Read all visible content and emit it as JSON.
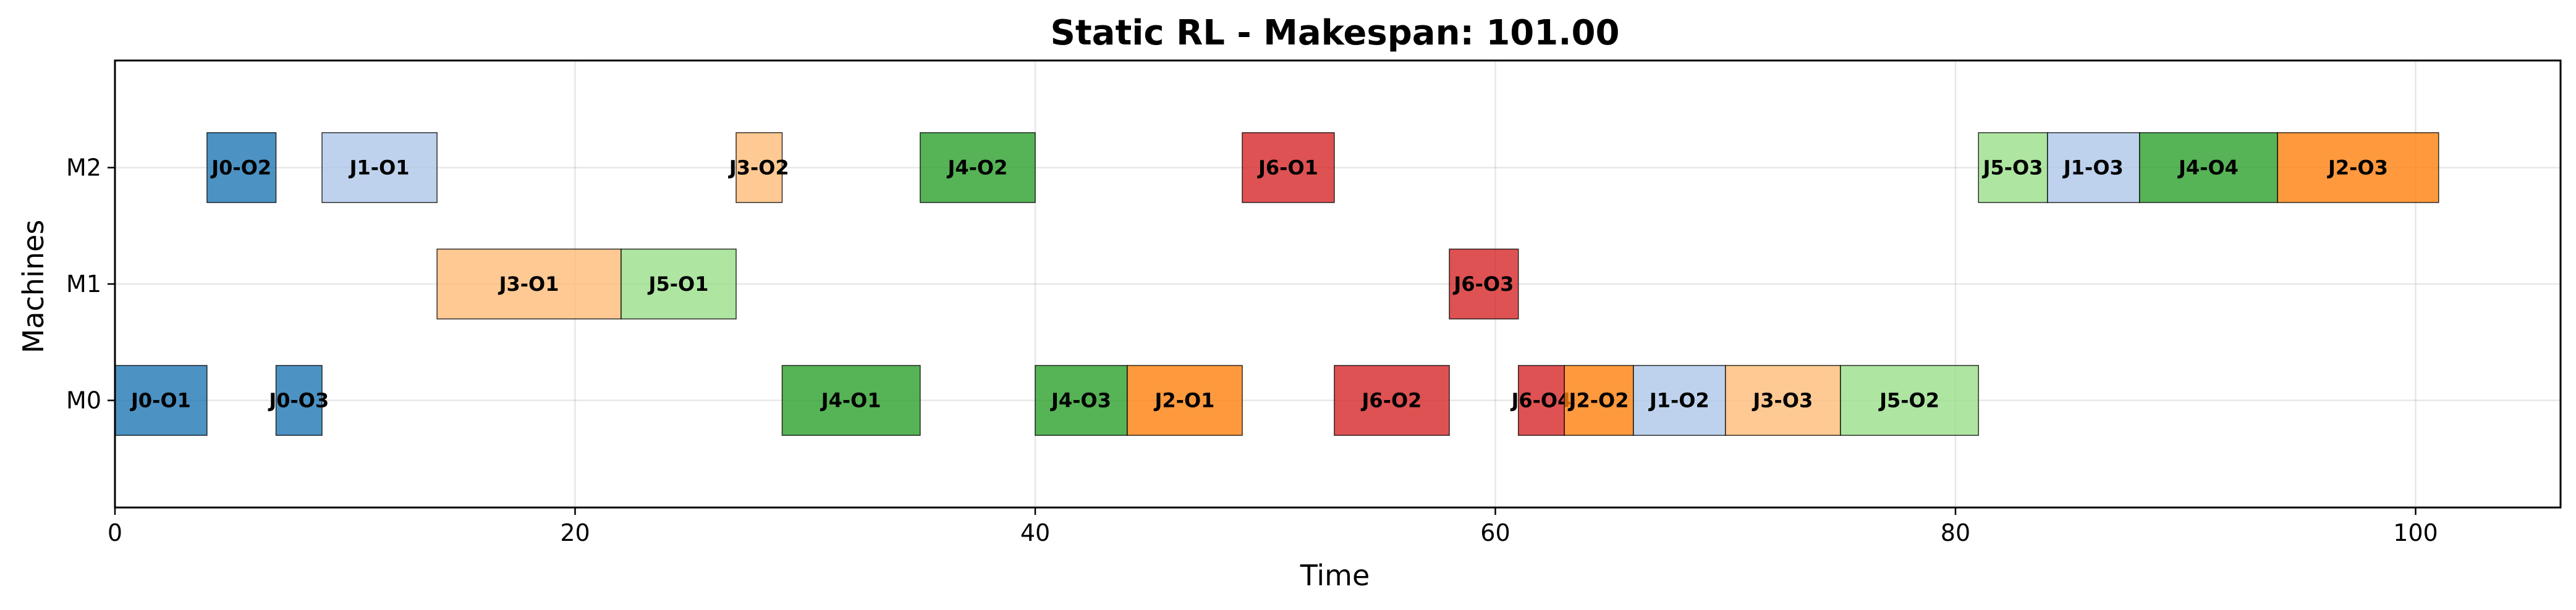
{
  "chart_data": {
    "type": "gantt",
    "title": "Static RL - Makespan: 101.00",
    "xlabel": "Time",
    "ylabel": "Machines",
    "xlim": [
      0,
      106.3
    ],
    "xticks": [
      0,
      20,
      40,
      60,
      80,
      100
    ],
    "machines": [
      "M0",
      "M1",
      "M2"
    ],
    "grid": true,
    "colors": {
      "J0": "#1f77b4",
      "J1": "#aec7e8",
      "J2": "#ff7f0e",
      "J3": "#ffbb78",
      "J4": "#2ca02c",
      "J5": "#98df8a",
      "J6": "#d62728"
    },
    "tasks": [
      {
        "label": "J0-O2",
        "job": "J0",
        "machine": "M2",
        "start": 4,
        "end": 7
      },
      {
        "label": "J1-O1",
        "job": "J1",
        "machine": "M2",
        "start": 9,
        "end": 14
      },
      {
        "label": "J3-O2",
        "job": "J3",
        "machine": "M2",
        "start": 27,
        "end": 29
      },
      {
        "label": "J4-O2",
        "job": "J4",
        "machine": "M2",
        "start": 35,
        "end": 40
      },
      {
        "label": "J6-O1",
        "job": "J6",
        "machine": "M2",
        "start": 49,
        "end": 53
      },
      {
        "label": "J5-O3",
        "job": "J5",
        "machine": "M2",
        "start": 81,
        "end": 84
      },
      {
        "label": "J1-O3",
        "job": "J1",
        "machine": "M2",
        "start": 84,
        "end": 88
      },
      {
        "label": "J4-O4",
        "job": "J4",
        "machine": "M2",
        "start": 88,
        "end": 94
      },
      {
        "label": "J2-O3",
        "job": "J2",
        "machine": "M2",
        "start": 94,
        "end": 101
      },
      {
        "label": "J3-O1",
        "job": "J3",
        "machine": "M1",
        "start": 14,
        "end": 22
      },
      {
        "label": "J5-O1",
        "job": "J5",
        "machine": "M1",
        "start": 22,
        "end": 27
      },
      {
        "label": "J6-O3",
        "job": "J6",
        "machine": "M1",
        "start": 58,
        "end": 61
      },
      {
        "label": "J0-O1",
        "job": "J0",
        "machine": "M0",
        "start": 0,
        "end": 4
      },
      {
        "label": "J0-O3",
        "job": "J0",
        "machine": "M0",
        "start": 7,
        "end": 9
      },
      {
        "label": "J4-O1",
        "job": "J4",
        "machine": "M0",
        "start": 29,
        "end": 35
      },
      {
        "label": "J4-O3",
        "job": "J4",
        "machine": "M0",
        "start": 40,
        "end": 44
      },
      {
        "label": "J2-O1",
        "job": "J2",
        "machine": "M0",
        "start": 44,
        "end": 49
      },
      {
        "label": "J6-O2",
        "job": "J6",
        "machine": "M0",
        "start": 53,
        "end": 58
      },
      {
        "label": "J6-O4",
        "job": "J6",
        "machine": "M0",
        "start": 61,
        "end": 63
      },
      {
        "label": "J2-O2",
        "job": "J2",
        "machine": "M0",
        "start": 63,
        "end": 66
      },
      {
        "label": "J1-O2",
        "job": "J1",
        "machine": "M0",
        "start": 66,
        "end": 70
      },
      {
        "label": "J3-O3",
        "job": "J3",
        "machine": "M0",
        "start": 70,
        "end": 75
      },
      {
        "label": "J5-O2",
        "job": "J5",
        "machine": "M0",
        "start": 75,
        "end": 81
      }
    ]
  }
}
